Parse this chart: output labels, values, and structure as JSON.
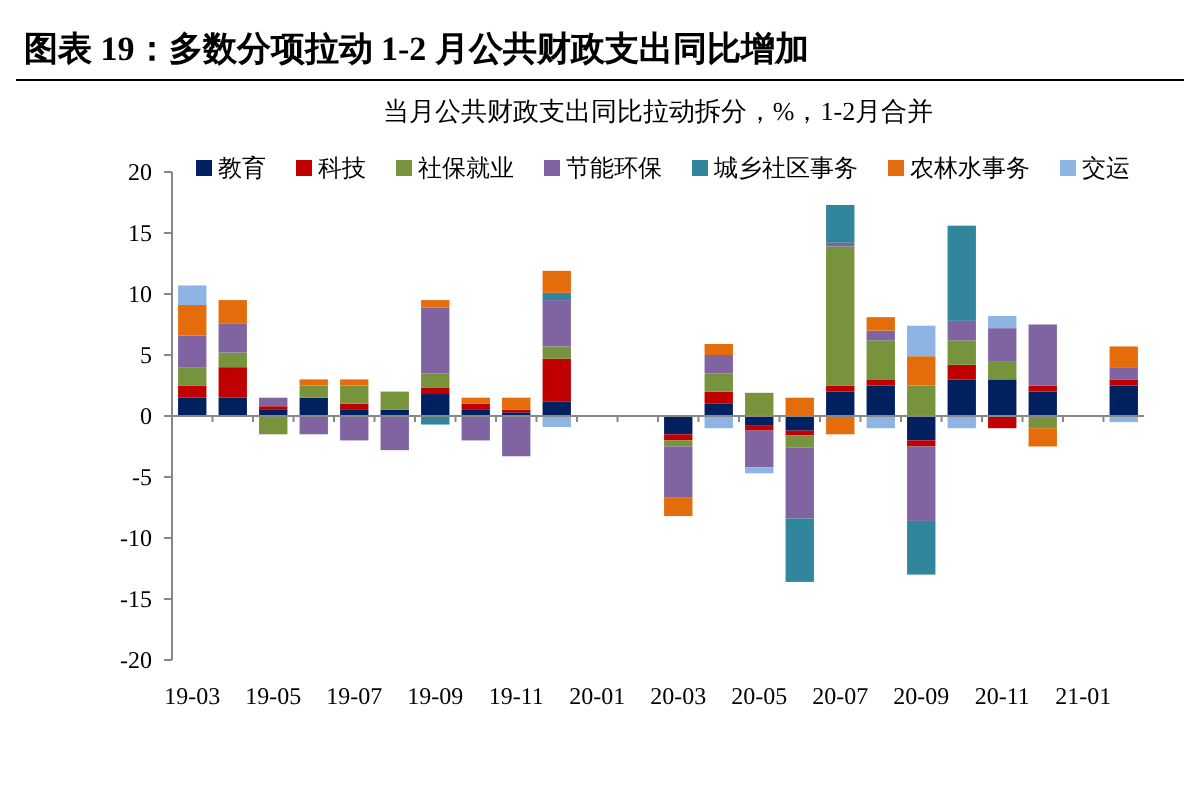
{
  "chart_data": {
    "type": "bar",
    "stacked": true,
    "title": "图表 19：多数分项拉动 1-2 月公共财政支出同比增加",
    "subtitle": "当月公共财政支出同比拉动拆分，%，1-2月合并",
    "categories": [
      "19-03",
      null,
      "19-05",
      null,
      "19-07",
      null,
      "19-09",
      null,
      "19-11",
      null,
      "20-01",
      null,
      "20-03",
      null,
      "20-05",
      null,
      "20-07",
      null,
      "20-09",
      null,
      "20-11",
      null,
      "21-01",
      null
    ],
    "series": [
      {
        "name": "教育",
        "color": "#002060",
        "values": [
          1.5,
          1.5,
          0.5,
          1.5,
          0.5,
          0.5,
          1.8,
          0.5,
          0.3,
          1.2,
          null,
          null,
          -1.5,
          1.0,
          -0.8,
          -1.2,
          2.0,
          2.5,
          -2.0,
          3.0,
          3.0,
          2.0,
          null,
          2.5
        ]
      },
      {
        "name": "科技",
        "color": "#c00000",
        "values": [
          1.0,
          2.5,
          0.3,
          0,
          0.5,
          0,
          0.5,
          0.5,
          0.2,
          3.5,
          null,
          null,
          -0.5,
          1.0,
          -0.4,
          -0.4,
          0.5,
          0.5,
          -0.5,
          1.2,
          -1.0,
          0.5,
          null,
          0.5
        ]
      },
      {
        "name": "社保就业",
        "color": "#77933c",
        "values": [
          1.5,
          1.2,
          -1.5,
          1.0,
          1.5,
          1.5,
          1.2,
          0,
          0,
          1.0,
          null,
          null,
          -0.5,
          1.5,
          1.9,
          -1.0,
          11.4,
          3.2,
          2.5,
          2.0,
          1.5,
          -1.0,
          null,
          0
        ]
      },
      {
        "name": "节能环保",
        "color": "#8064a2",
        "values": [
          2.6,
          2.4,
          0.7,
          -1.5,
          -2.0,
          -2.8,
          5.4,
          -2.0,
          -3.3,
          3.8,
          null,
          null,
          -4.2,
          1.5,
          -3.0,
          -5.8,
          0.3,
          0.8,
          -6.1,
          1.6,
          2.7,
          5.0,
          null,
          1.0
        ]
      },
      {
        "name": "城乡社区事务",
        "color": "#31859c",
        "values": [
          0,
          0,
          0,
          0,
          0,
          0,
          -0.7,
          0,
          0,
          0.6,
          null,
          null,
          0,
          0,
          0,
          -5.2,
          3.1,
          0,
          -4.4,
          7.8,
          0,
          0,
          null,
          0
        ]
      },
      {
        "name": "农林水事务",
        "color": "#e46c0a",
        "values": [
          2.5,
          1.9,
          0,
          0.5,
          0.5,
          0,
          0.6,
          0.5,
          1.0,
          1.8,
          null,
          null,
          -1.5,
          0.9,
          0,
          1.5,
          -1.5,
          1.1,
          2.4,
          0,
          0,
          -1.5,
          null,
          1.7
        ]
      },
      {
        "name": "交运",
        "color": "#8eb4e3",
        "values": [
          1.6,
          0,
          0,
          0,
          0,
          0,
          0,
          0,
          0,
          -0.9,
          null,
          null,
          0,
          -1.0,
          -0.5,
          0,
          0,
          -1.0,
          2.5,
          -1.0,
          1.0,
          0,
          null,
          -0.5
        ]
      }
    ],
    "ylim": [
      -20,
      20
    ],
    "yticks": [
      -20,
      -15,
      -10,
      -5,
      0,
      5,
      10,
      15,
      20
    ],
    "legend": "top"
  }
}
